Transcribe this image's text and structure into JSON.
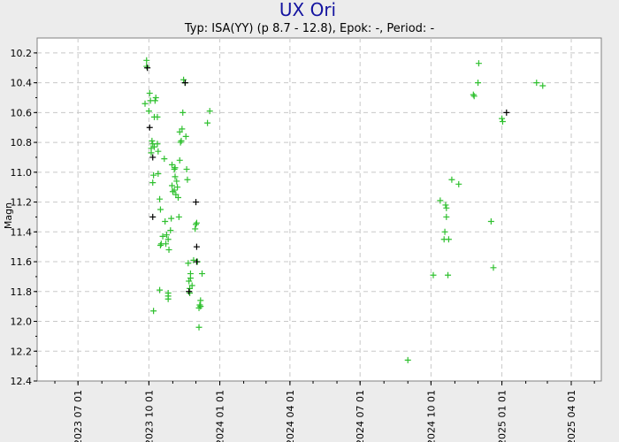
{
  "colors": {
    "visual": "#2fc02f",
    "other": "#000000",
    "title": "#1414a0",
    "grid": "#c8c8c8",
    "background": "#ececec",
    "plot": "#ffffff"
  },
  "chart_data": {
    "type": "scatter",
    "title": "UX Ori",
    "subtitle": "Typ: ISA(YY) (p 8.7 - 12.8), Epok: -, Period: -",
    "ylabel": "Magn",
    "xlabel": "",
    "xlim": [
      "2023-05-09",
      "2025-05-10"
    ],
    "ylim": [
      10.1,
      12.4
    ],
    "y_inverted": true,
    "grid": true,
    "x_ticks": [
      "2023-07-01",
      "2023-10-01",
      "2024-01-01",
      "2024-04-01",
      "2024-07-01",
      "2024-10-01",
      "2025-01-01",
      "2025-04-01"
    ],
    "x_tick_labels": [
      "2023 07 01",
      "2023 10 01",
      "2024 01 01",
      "2024 04 01",
      "2024 07 01",
      "2024 10 01",
      "2025 01 01",
      "2025 04 01"
    ],
    "y_ticks": [
      "10.2",
      "10.4",
      "10.6",
      "10.8",
      "11.0",
      "11.2",
      "11.4",
      "11.6",
      "11.8",
      "12.0",
      "12.2",
      "12.4"
    ],
    "series": [
      {
        "color": "#2fc02f",
        "points": [
          [
            "2023-09-26",
            10.54
          ],
          [
            "2023-09-28",
            10.25
          ],
          [
            "2023-09-28",
            10.29
          ],
          [
            "2023-10-01",
            10.59
          ],
          [
            "2023-10-02",
            10.47
          ],
          [
            "2023-10-03",
            10.52
          ],
          [
            "2023-10-04",
            10.84
          ],
          [
            "2023-10-04",
            10.87
          ],
          [
            "2023-10-05",
            10.79
          ],
          [
            "2023-10-06",
            10.81
          ],
          [
            "2023-10-06",
            11.07
          ],
          [
            "2023-10-07",
            11.93
          ],
          [
            "2023-10-07",
            11.02
          ],
          [
            "2023-10-08",
            10.63
          ],
          [
            "2023-10-08",
            10.83
          ],
          [
            "2023-10-09",
            10.52
          ],
          [
            "2023-10-10",
            10.5
          ],
          [
            "2023-10-12",
            10.63
          ],
          [
            "2023-10-12",
            10.81
          ],
          [
            "2023-10-13",
            11.01
          ],
          [
            "2023-10-13",
            10.86
          ],
          [
            "2023-10-15",
            11.79
          ],
          [
            "2023-10-15",
            11.18
          ],
          [
            "2023-10-16",
            11.25
          ],
          [
            "2023-10-16",
            11.49
          ],
          [
            "2023-10-17",
            11.48
          ],
          [
            "2023-10-19",
            11.43
          ],
          [
            "2023-10-21",
            10.91
          ],
          [
            "2023-10-22",
            11.33
          ],
          [
            "2023-10-23",
            11.48
          ],
          [
            "2023-10-24",
            11.42
          ],
          [
            "2023-10-26",
            11.81
          ],
          [
            "2023-10-26",
            11.83
          ],
          [
            "2023-10-26",
            11.85
          ],
          [
            "2023-10-26",
            11.45
          ],
          [
            "2023-10-27",
            11.52
          ],
          [
            "2023-10-29",
            11.39
          ],
          [
            "2023-10-30",
            11.31
          ],
          [
            "2023-10-31",
            11.09
          ],
          [
            "2023-10-31",
            10.95
          ],
          [
            "2023-11-01",
            11.13
          ],
          [
            "2023-11-03",
            10.98
          ],
          [
            "2023-11-03",
            11.12
          ],
          [
            "2023-11-04",
            10.97
          ],
          [
            "2023-11-04",
            11.03
          ],
          [
            "2023-11-05",
            11.15
          ],
          [
            "2023-11-06",
            11.06
          ],
          [
            "2023-11-07",
            11.1
          ],
          [
            "2023-11-08",
            11.17
          ],
          [
            "2023-11-09",
            11.3
          ],
          [
            "2023-11-10",
            10.92
          ],
          [
            "2023-11-10",
            10.73
          ],
          [
            "2023-11-11",
            10.8
          ],
          [
            "2023-11-12",
            10.79
          ],
          [
            "2023-11-13",
            10.71
          ],
          [
            "2023-11-14",
            10.6
          ],
          [
            "2023-11-15",
            10.38
          ],
          [
            "2023-11-17",
            10.4
          ],
          [
            "2023-11-18",
            10.76
          ],
          [
            "2023-11-19",
            10.98
          ],
          [
            "2023-11-20",
            11.05
          ],
          [
            "2023-11-21",
            11.61
          ],
          [
            "2023-11-22",
            11.73
          ],
          [
            "2023-11-23",
            11.78
          ],
          [
            "2023-11-23",
            11.81
          ],
          [
            "2023-11-24",
            11.71
          ],
          [
            "2023-11-24",
            11.68
          ],
          [
            "2023-11-26",
            11.76
          ],
          [
            "2023-11-28",
            11.59
          ],
          [
            "2023-11-30",
            11.38
          ],
          [
            "2023-12-01",
            11.35
          ],
          [
            "2023-12-02",
            11.34
          ],
          [
            "2023-12-03",
            11.6
          ],
          [
            "2023-12-05",
            11.91
          ],
          [
            "2023-12-05",
            12.04
          ],
          [
            "2023-12-06",
            11.89
          ],
          [
            "2023-12-07",
            11.86
          ],
          [
            "2023-12-07",
            11.9
          ],
          [
            "2023-12-09",
            11.68
          ],
          [
            "2023-12-16",
            10.67
          ],
          [
            "2023-12-19",
            10.59
          ],
          [
            "2024-09-01",
            12.26
          ],
          [
            "2024-10-04",
            11.69
          ],
          [
            "2024-10-13",
            11.19
          ],
          [
            "2024-10-18",
            11.45
          ],
          [
            "2024-10-19",
            11.4
          ],
          [
            "2024-10-20",
            11.22
          ],
          [
            "2024-10-21",
            11.3
          ],
          [
            "2024-10-21",
            11.24
          ],
          [
            "2024-10-23",
            11.69
          ],
          [
            "2024-10-24",
            11.45
          ],
          [
            "2024-10-28",
            11.05
          ],
          [
            "2024-11-06",
            11.08
          ],
          [
            "2024-11-25",
            10.48
          ],
          [
            "2024-11-26",
            10.49
          ],
          [
            "2024-12-01",
            10.4
          ],
          [
            "2024-12-02",
            10.27
          ],
          [
            "2024-12-18",
            11.33
          ],
          [
            "2024-12-21",
            11.64
          ],
          [
            "2025-01-01",
            10.64
          ],
          [
            "2025-01-02",
            10.66
          ],
          [
            "2025-02-15",
            10.4
          ],
          [
            "2025-02-23",
            10.42
          ]
        ]
      },
      {
        "color": "#000000",
        "points": [
          [
            "2023-09-29",
            10.3
          ],
          [
            "2023-10-02",
            10.7
          ],
          [
            "2023-10-06",
            10.9
          ],
          [
            "2023-10-06",
            11.3
          ],
          [
            "2023-11-17",
            10.4
          ],
          [
            "2023-12-01",
            11.2
          ],
          [
            "2023-12-02",
            11.5
          ],
          [
            "2023-12-02",
            11.6
          ],
          [
            "2023-11-22",
            11.8
          ],
          [
            "2025-01-07",
            10.6
          ]
        ]
      }
    ]
  }
}
